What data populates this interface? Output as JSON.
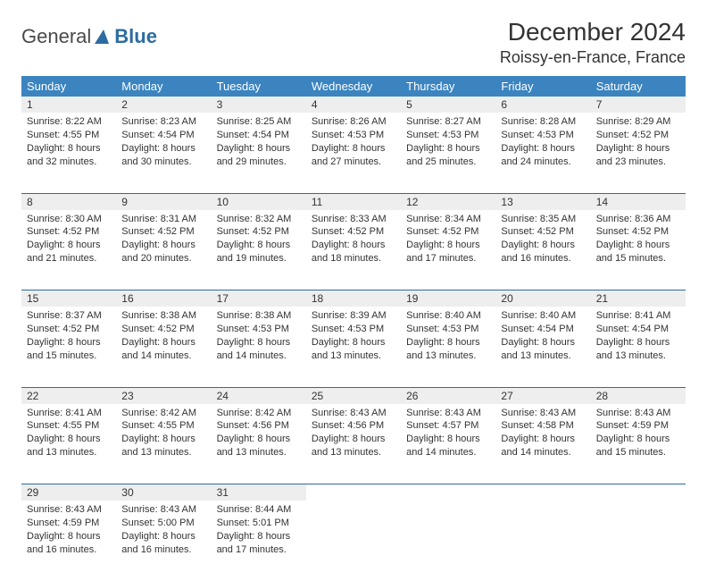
{
  "logo": {
    "word1": "General",
    "word2": "Blue"
  },
  "title": "December 2024",
  "location": "Roissy-en-France, France",
  "colors": {
    "header_bg": "#3b84c0",
    "header_text": "#ffffff",
    "daynum_bg": "#eeeeee",
    "rule": "#2d6ca2",
    "text": "#333333",
    "logo_gray": "#4a4a4a",
    "logo_blue": "#2d6ca2"
  },
  "weekdays": [
    "Sunday",
    "Monday",
    "Tuesday",
    "Wednesday",
    "Thursday",
    "Friday",
    "Saturday"
  ],
  "weeks": [
    [
      {
        "n": "1",
        "sr": "Sunrise: 8:22 AM",
        "ss": "Sunset: 4:55 PM",
        "d1": "Daylight: 8 hours",
        "d2": "and 32 minutes."
      },
      {
        "n": "2",
        "sr": "Sunrise: 8:23 AM",
        "ss": "Sunset: 4:54 PM",
        "d1": "Daylight: 8 hours",
        "d2": "and 30 minutes."
      },
      {
        "n": "3",
        "sr": "Sunrise: 8:25 AM",
        "ss": "Sunset: 4:54 PM",
        "d1": "Daylight: 8 hours",
        "d2": "and 29 minutes."
      },
      {
        "n": "4",
        "sr": "Sunrise: 8:26 AM",
        "ss": "Sunset: 4:53 PM",
        "d1": "Daylight: 8 hours",
        "d2": "and 27 minutes."
      },
      {
        "n": "5",
        "sr": "Sunrise: 8:27 AM",
        "ss": "Sunset: 4:53 PM",
        "d1": "Daylight: 8 hours",
        "d2": "and 25 minutes."
      },
      {
        "n": "6",
        "sr": "Sunrise: 8:28 AM",
        "ss": "Sunset: 4:53 PM",
        "d1": "Daylight: 8 hours",
        "d2": "and 24 minutes."
      },
      {
        "n": "7",
        "sr": "Sunrise: 8:29 AM",
        "ss": "Sunset: 4:52 PM",
        "d1": "Daylight: 8 hours",
        "d2": "and 23 minutes."
      }
    ],
    [
      {
        "n": "8",
        "sr": "Sunrise: 8:30 AM",
        "ss": "Sunset: 4:52 PM",
        "d1": "Daylight: 8 hours",
        "d2": "and 21 minutes."
      },
      {
        "n": "9",
        "sr": "Sunrise: 8:31 AM",
        "ss": "Sunset: 4:52 PM",
        "d1": "Daylight: 8 hours",
        "d2": "and 20 minutes."
      },
      {
        "n": "10",
        "sr": "Sunrise: 8:32 AM",
        "ss": "Sunset: 4:52 PM",
        "d1": "Daylight: 8 hours",
        "d2": "and 19 minutes."
      },
      {
        "n": "11",
        "sr": "Sunrise: 8:33 AM",
        "ss": "Sunset: 4:52 PM",
        "d1": "Daylight: 8 hours",
        "d2": "and 18 minutes."
      },
      {
        "n": "12",
        "sr": "Sunrise: 8:34 AM",
        "ss": "Sunset: 4:52 PM",
        "d1": "Daylight: 8 hours",
        "d2": "and 17 minutes."
      },
      {
        "n": "13",
        "sr": "Sunrise: 8:35 AM",
        "ss": "Sunset: 4:52 PM",
        "d1": "Daylight: 8 hours",
        "d2": "and 16 minutes."
      },
      {
        "n": "14",
        "sr": "Sunrise: 8:36 AM",
        "ss": "Sunset: 4:52 PM",
        "d1": "Daylight: 8 hours",
        "d2": "and 15 minutes."
      }
    ],
    [
      {
        "n": "15",
        "sr": "Sunrise: 8:37 AM",
        "ss": "Sunset: 4:52 PM",
        "d1": "Daylight: 8 hours",
        "d2": "and 15 minutes."
      },
      {
        "n": "16",
        "sr": "Sunrise: 8:38 AM",
        "ss": "Sunset: 4:52 PM",
        "d1": "Daylight: 8 hours",
        "d2": "and 14 minutes."
      },
      {
        "n": "17",
        "sr": "Sunrise: 8:38 AM",
        "ss": "Sunset: 4:53 PM",
        "d1": "Daylight: 8 hours",
        "d2": "and 14 minutes."
      },
      {
        "n": "18",
        "sr": "Sunrise: 8:39 AM",
        "ss": "Sunset: 4:53 PM",
        "d1": "Daylight: 8 hours",
        "d2": "and 13 minutes."
      },
      {
        "n": "19",
        "sr": "Sunrise: 8:40 AM",
        "ss": "Sunset: 4:53 PM",
        "d1": "Daylight: 8 hours",
        "d2": "and 13 minutes."
      },
      {
        "n": "20",
        "sr": "Sunrise: 8:40 AM",
        "ss": "Sunset: 4:54 PM",
        "d1": "Daylight: 8 hours",
        "d2": "and 13 minutes."
      },
      {
        "n": "21",
        "sr": "Sunrise: 8:41 AM",
        "ss": "Sunset: 4:54 PM",
        "d1": "Daylight: 8 hours",
        "d2": "and 13 minutes."
      }
    ],
    [
      {
        "n": "22",
        "sr": "Sunrise: 8:41 AM",
        "ss": "Sunset: 4:55 PM",
        "d1": "Daylight: 8 hours",
        "d2": "and 13 minutes."
      },
      {
        "n": "23",
        "sr": "Sunrise: 8:42 AM",
        "ss": "Sunset: 4:55 PM",
        "d1": "Daylight: 8 hours",
        "d2": "and 13 minutes."
      },
      {
        "n": "24",
        "sr": "Sunrise: 8:42 AM",
        "ss": "Sunset: 4:56 PM",
        "d1": "Daylight: 8 hours",
        "d2": "and 13 minutes."
      },
      {
        "n": "25",
        "sr": "Sunrise: 8:43 AM",
        "ss": "Sunset: 4:56 PM",
        "d1": "Daylight: 8 hours",
        "d2": "and 13 minutes."
      },
      {
        "n": "26",
        "sr": "Sunrise: 8:43 AM",
        "ss": "Sunset: 4:57 PM",
        "d1": "Daylight: 8 hours",
        "d2": "and 14 minutes."
      },
      {
        "n": "27",
        "sr": "Sunrise: 8:43 AM",
        "ss": "Sunset: 4:58 PM",
        "d1": "Daylight: 8 hours",
        "d2": "and 14 minutes."
      },
      {
        "n": "28",
        "sr": "Sunrise: 8:43 AM",
        "ss": "Sunset: 4:59 PM",
        "d1": "Daylight: 8 hours",
        "d2": "and 15 minutes."
      }
    ],
    [
      {
        "n": "29",
        "sr": "Sunrise: 8:43 AM",
        "ss": "Sunset: 4:59 PM",
        "d1": "Daylight: 8 hours",
        "d2": "and 16 minutes."
      },
      {
        "n": "30",
        "sr": "Sunrise: 8:43 AM",
        "ss": "Sunset: 5:00 PM",
        "d1": "Daylight: 8 hours",
        "d2": "and 16 minutes."
      },
      {
        "n": "31",
        "sr": "Sunrise: 8:44 AM",
        "ss": "Sunset: 5:01 PM",
        "d1": "Daylight: 8 hours",
        "d2": "and 17 minutes."
      },
      null,
      null,
      null,
      null
    ]
  ]
}
